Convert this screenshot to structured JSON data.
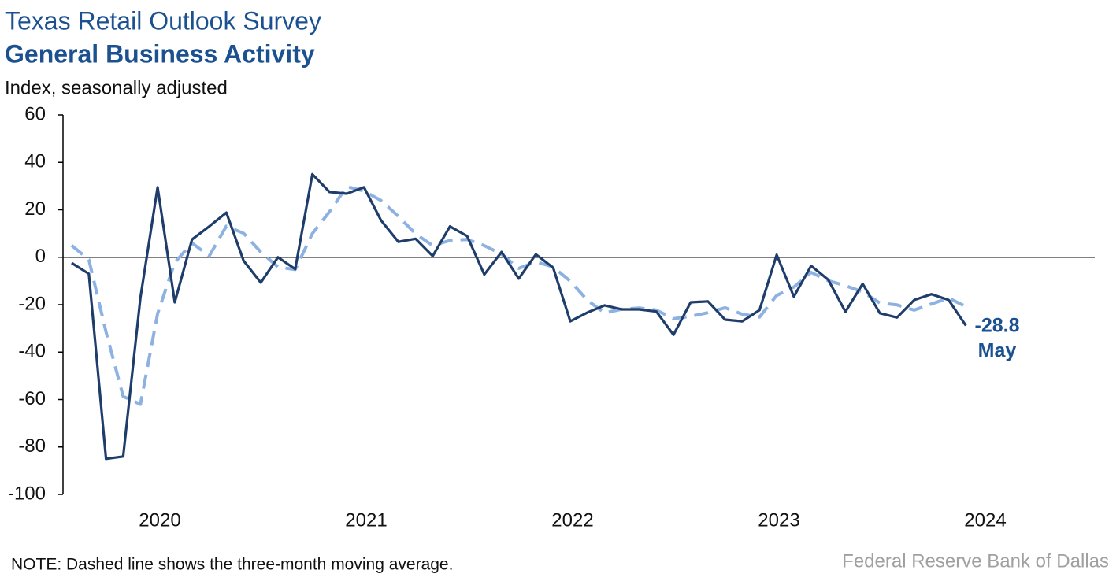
{
  "chart_data": {
    "type": "line",
    "title": "Texas Retail Outlook Survey",
    "subtitle": "General Business Activity",
    "ylabel": "Index, seasonally adjusted",
    "note": "NOTE: Dashed line shows the three-month moving average.",
    "source": "Federal Reserve Bank of Dallas",
    "annotations": [
      "-28.8",
      "May"
    ],
    "x": [
      "2020-01",
      "2020-02",
      "2020-03",
      "2020-04",
      "2020-05",
      "2020-06",
      "2020-07",
      "2020-08",
      "2020-09",
      "2020-10",
      "2020-11",
      "2020-12",
      "2021-01",
      "2021-02",
      "2021-03",
      "2021-04",
      "2021-05",
      "2021-06",
      "2021-07",
      "2021-08",
      "2021-09",
      "2021-10",
      "2021-11",
      "2021-12",
      "2022-01",
      "2022-02",
      "2022-03",
      "2022-04",
      "2022-05",
      "2022-06",
      "2022-07",
      "2022-08",
      "2022-09",
      "2022-10",
      "2022-11",
      "2022-12",
      "2023-01",
      "2023-02",
      "2023-03",
      "2023-04",
      "2023-05",
      "2023-06",
      "2023-07",
      "2023-08",
      "2023-09",
      "2023-10",
      "2023-11",
      "2023-12",
      "2024-01",
      "2024-02",
      "2024-03",
      "2024-04",
      "2024-05"
    ],
    "series": [
      {
        "color": "#1f3d6b",
        "dash": false,
        "values": [
          -2.4,
          -7,
          -85,
          -84,
          -17,
          29.5,
          -19,
          7.5,
          13,
          18.8,
          -1.5,
          -10.7,
          0,
          -5,
          35,
          27.5,
          26.8,
          29.5,
          15.5,
          6.5,
          7.8,
          0.5,
          13,
          8.9,
          -7.3,
          2.2,
          -9,
          1.2,
          -4.4,
          -27,
          -23.3,
          -20.3,
          -22,
          -22,
          -22.9,
          -32.7,
          -19,
          -18.6,
          -26.3,
          -27,
          -22.3,
          1,
          -16.6,
          -3.6,
          -9.5,
          -23,
          -11.2,
          -23.6,
          -25.4,
          -18,
          -15.6,
          -18,
          -28.8
        ]
      },
      {
        "color": "#8db2e2",
        "dash": true,
        "values": [
          5,
          -1,
          -31.5,
          -58.7,
          -62,
          -23.8,
          -2.2,
          6,
          0.5,
          13.1,
          10.1,
          2.2,
          -4.1,
          -5.2,
          10,
          19.2,
          29.8,
          27.9,
          23.9,
          17.2,
          9.9,
          4.9,
          7.1,
          7.5,
          4.9,
          1.3,
          -4.7,
          -1.9,
          -4.1,
          -10.1,
          -18.2,
          -23.5,
          -21.9,
          -21.4,
          -22.3,
          -25.9,
          -24.9,
          -23.4,
          -21.3,
          -24,
          -25.2,
          -16.1,
          -12.6,
          -6.4,
          -9.9,
          -12,
          -14.6,
          -19.3,
          -20.1,
          -22.3,
          -19.7,
          -17.2,
          -20.8
        ]
      }
    ],
    "xlim": [
      "2020-01",
      "2024-12"
    ],
    "xticks": [
      "2020",
      "2021",
      "2022",
      "2023",
      "2024"
    ],
    "ylim": [
      -100,
      60
    ],
    "yticks": [
      -100,
      -80,
      -60,
      -40,
      -20,
      0,
      20,
      40,
      60
    ],
    "grid": false
  }
}
